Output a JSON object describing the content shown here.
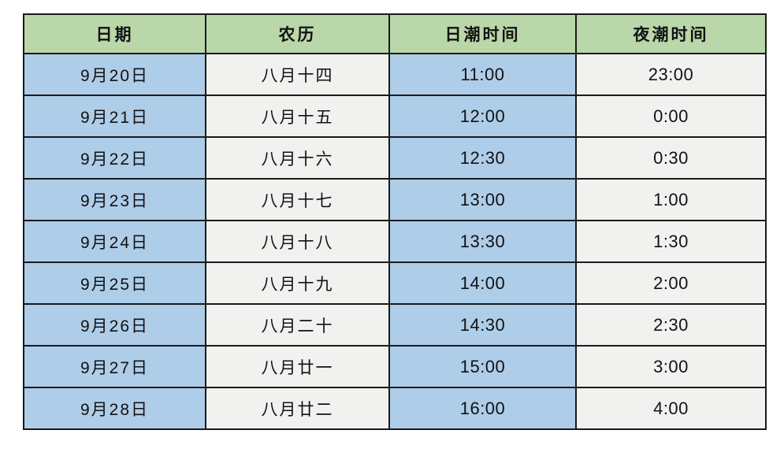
{
  "colors": {
    "header_bg": "#b9d7a9",
    "blue_cell_bg": "#aecde9",
    "light_cell_bg": "#f1f1ef",
    "border": "#1a1a1a",
    "text": "#121212",
    "page_bg": "#ffffff"
  },
  "table": {
    "columns": [
      {
        "key": "date",
        "label": "日期"
      },
      {
        "key": "lunar",
        "label": "农历"
      },
      {
        "key": "day_tide",
        "label": "日潮时间"
      },
      {
        "key": "night_tide",
        "label": "夜潮时间"
      }
    ],
    "rows": [
      {
        "date": "9月20日",
        "lunar": "八月十四",
        "day_tide": "11:00",
        "night_tide": "23:00"
      },
      {
        "date": "9月21日",
        "lunar": "八月十五",
        "day_tide": "12:00",
        "night_tide": "0:00"
      },
      {
        "date": "9月22日",
        "lunar": "八月十六",
        "day_tide": "12:30",
        "night_tide": "0:30"
      },
      {
        "date": "9月23日",
        "lunar": "八月十七",
        "day_tide": "13:00",
        "night_tide": "1:00"
      },
      {
        "date": "9月24日",
        "lunar": "八月十八",
        "day_tide": "13:30",
        "night_tide": "1:30"
      },
      {
        "date": "9月25日",
        "lunar": "八月十九",
        "day_tide": "14:00",
        "night_tide": "2:00"
      },
      {
        "date": "9月26日",
        "lunar": "八月二十",
        "day_tide": "14:30",
        "night_tide": "2:30"
      },
      {
        "date": "9月27日",
        "lunar": "八月廿一",
        "day_tide": "15:00",
        "night_tide": "3:00"
      },
      {
        "date": "9月28日",
        "lunar": "八月廿二",
        "day_tide": "16:00",
        "night_tide": "4:00"
      }
    ]
  },
  "chart_data": {
    "type": "table",
    "title": "",
    "columns": [
      "日期",
      "农历",
      "日潮时间",
      "夜潮时间"
    ],
    "rows": [
      [
        "9月20日",
        "八月十四",
        "11:00",
        "23:00"
      ],
      [
        "9月21日",
        "八月十五",
        "12:00",
        "0:00"
      ],
      [
        "9月22日",
        "八月十六",
        "12:30",
        "0:30"
      ],
      [
        "9月23日",
        "八月十七",
        "13:00",
        "1:00"
      ],
      [
        "9月24日",
        "八月十八",
        "13:30",
        "1:30"
      ],
      [
        "9月25日",
        "八月十九",
        "14:00",
        "2:00"
      ],
      [
        "9月26日",
        "八月二十",
        "14:30",
        "2:30"
      ],
      [
        "9月27日",
        "八月廿一",
        "15:00",
        "3:00"
      ],
      [
        "9月28日",
        "八月廿二",
        "16:00",
        "4:00"
      ]
    ],
    "layout_hints": {
      "header_fill": "#b9d7a9",
      "column_fills": [
        "#aecde9",
        "#f1f1ef",
        "#aecde9",
        "#f1f1ef"
      ],
      "grid": true,
      "border_color": "#1a1a1a"
    }
  }
}
